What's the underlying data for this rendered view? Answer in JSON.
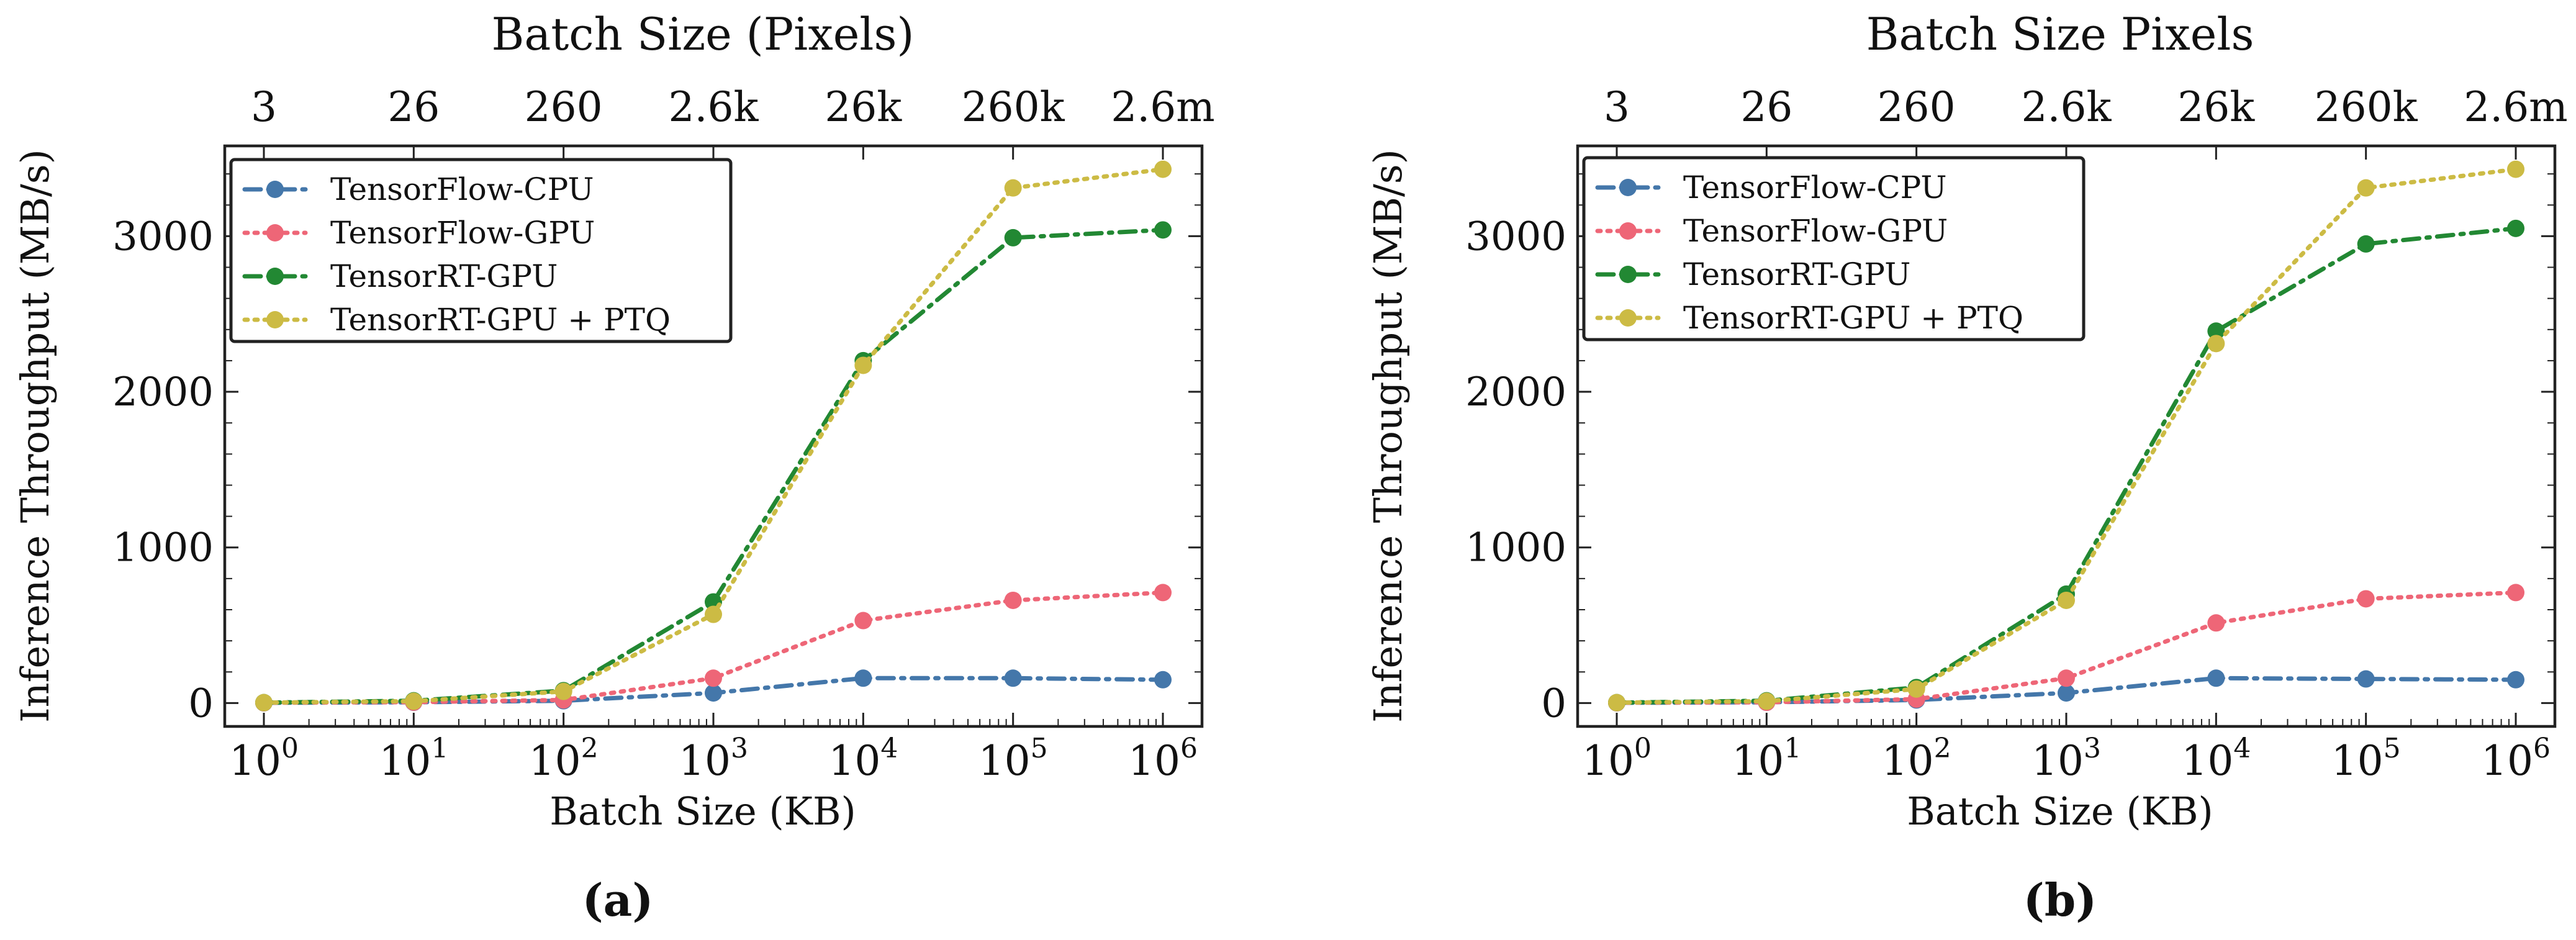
{
  "colors": {
    "TensorFlow-CPU": "#4477aa",
    "TensorFlow-GPU": "#ee6677",
    "TensorRT-GPU": "#228833",
    "TensorRT-GPU + PTQ": "#ccbb44",
    "axes": "#222222",
    "text": "#111111"
  },
  "chart_data": [
    {
      "type": "line",
      "panel_label": "(a)",
      "title_top_axis": "Batch Size (Pixels)",
      "top_tick_labels": [
        "3",
        "26",
        "260",
        "2.6k",
        "26k",
        "260k",
        "2.6m"
      ],
      "xlabel": "Batch Size (KB)",
      "ylabel": "Inference Throughput (MB/s)",
      "x_scale": "log",
      "x": [
        1,
        10,
        100,
        1000,
        10000,
        100000,
        1000000
      ],
      "x_tick_labels": [
        {
          "base": "10",
          "exp": "0"
        },
        {
          "base": "10",
          "exp": "1"
        },
        {
          "base": "10",
          "exp": "2"
        },
        {
          "base": "10",
          "exp": "3"
        },
        {
          "base": "10",
          "exp": "4"
        },
        {
          "base": "10",
          "exp": "5"
        },
        {
          "base": "10",
          "exp": "6"
        }
      ],
      "y_ticks": [
        0,
        1000,
        2000,
        3000
      ],
      "y_tick_labels": [
        "0",
        "1000",
        "2000",
        "3000"
      ],
      "ylim": [
        -150,
        3580
      ],
      "legend_position": "upper-left",
      "grid": false,
      "series": [
        {
          "name": "TensorFlow-CPU",
          "linestyle": "dashdot",
          "values": [
            2,
            5,
            15,
            65,
            160,
            160,
            150
          ]
        },
        {
          "name": "TensorFlow-GPU",
          "linestyle": "dotted",
          "values": [
            2,
            6,
            20,
            160,
            530,
            660,
            710
          ]
        },
        {
          "name": "TensorRT-GPU",
          "linestyle": "dashdot",
          "values": [
            3,
            15,
            80,
            650,
            2200,
            2990,
            3040
          ]
        },
        {
          "name": "TensorRT-GPU + PTQ",
          "linestyle": "dotted",
          "values": [
            3,
            12,
            75,
            570,
            2170,
            3310,
            3430
          ]
        }
      ]
    },
    {
      "type": "line",
      "panel_label": "(b)",
      "title_top_axis": "Batch Size Pixels",
      "top_tick_labels": [
        "3",
        "26",
        "260",
        "2.6k",
        "26k",
        "260k",
        "2.6m"
      ],
      "xlabel": "Batch Size (KB)",
      "ylabel": "Inference Throughput (MB/s)",
      "x_scale": "log",
      "x": [
        1,
        10,
        100,
        1000,
        10000,
        100000,
        1000000
      ],
      "x_tick_labels": [
        {
          "base": "10",
          "exp": "0"
        },
        {
          "base": "10",
          "exp": "1"
        },
        {
          "base": "10",
          "exp": "2"
        },
        {
          "base": "10",
          "exp": "3"
        },
        {
          "base": "10",
          "exp": "4"
        },
        {
          "base": "10",
          "exp": "5"
        },
        {
          "base": "10",
          "exp": "6"
        }
      ],
      "y_ticks": [
        0,
        1000,
        2000,
        3000
      ],
      "y_tick_labels": [
        "0",
        "1000",
        "2000",
        "3000"
      ],
      "ylim": [
        -150,
        3580
      ],
      "legend_position": "upper-left",
      "grid": false,
      "series": [
        {
          "name": "TensorFlow-CPU",
          "linestyle": "dashdot",
          "values": [
            2,
            5,
            20,
            65,
            160,
            155,
            150
          ]
        },
        {
          "name": "TensorFlow-GPU",
          "linestyle": "dotted",
          "values": [
            2,
            5,
            25,
            160,
            515,
            670,
            710
          ]
        },
        {
          "name": "TensorRT-GPU",
          "linestyle": "dashdot",
          "values": [
            3,
            15,
            100,
            700,
            2390,
            2950,
            3050
          ]
        },
        {
          "name": "TensorRT-GPU + PTQ",
          "linestyle": "dotted",
          "values": [
            3,
            12,
            90,
            660,
            2310,
            3310,
            3430
          ]
        }
      ]
    }
  ]
}
